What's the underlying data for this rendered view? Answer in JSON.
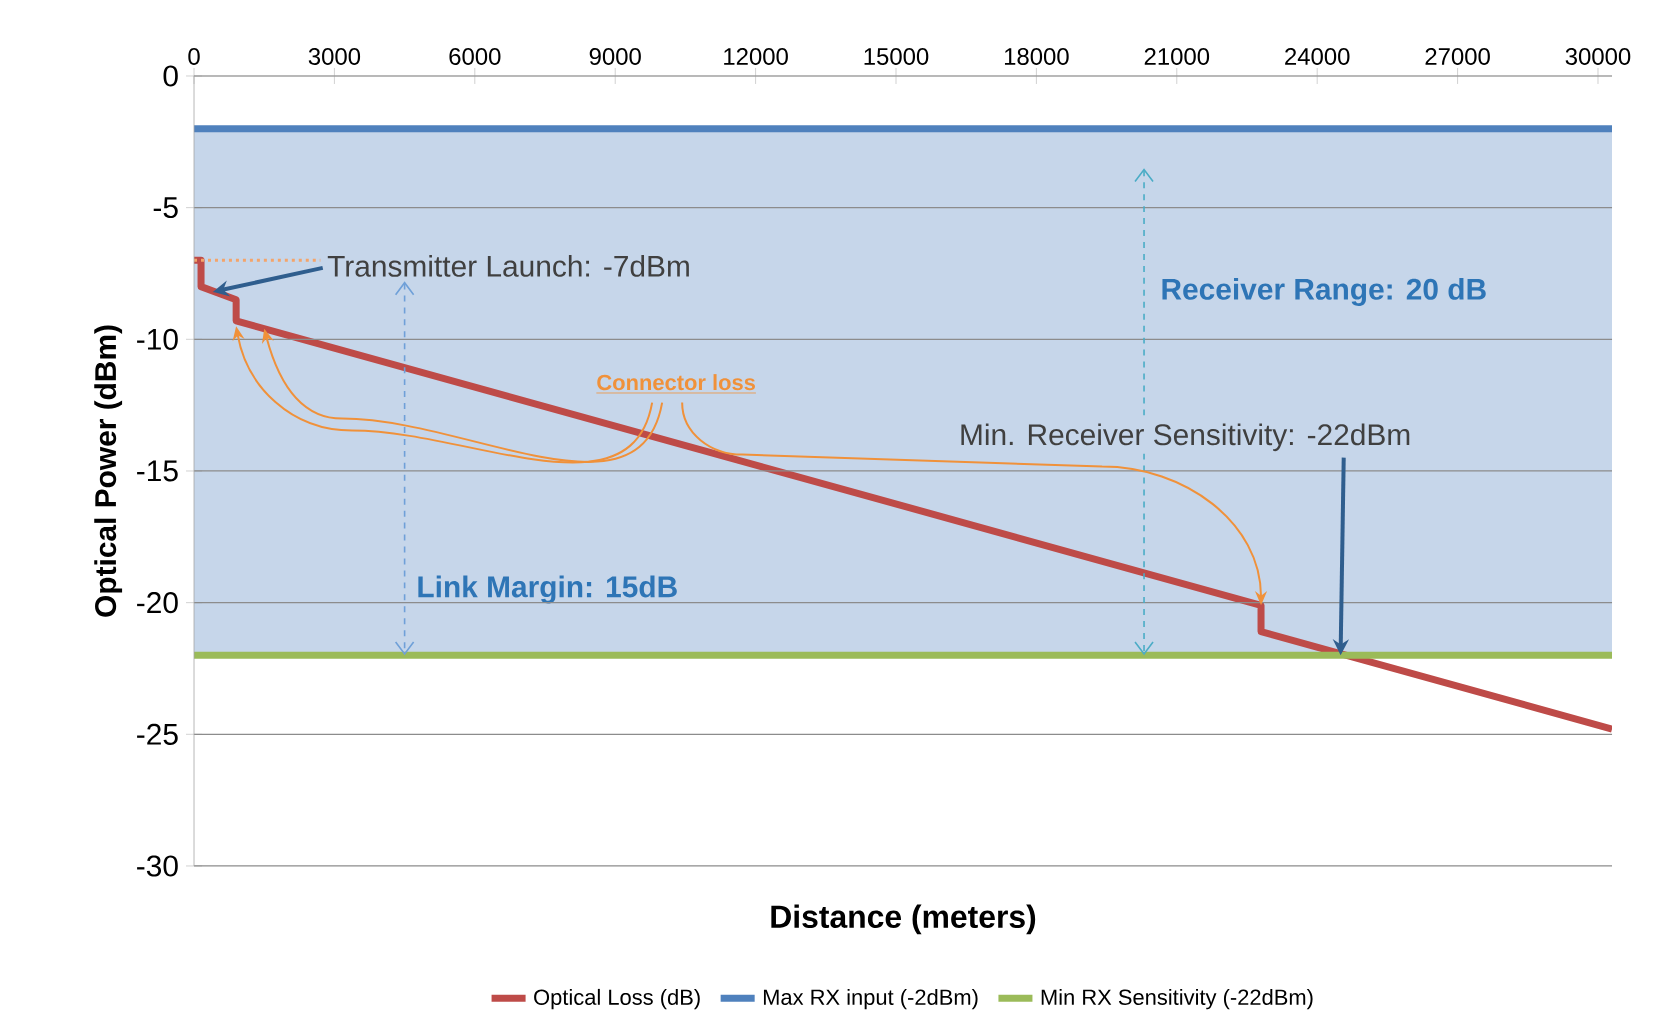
{
  "chart_data": {
    "type": "line",
    "xlabel": "Distance (meters)",
    "ylabel": "Optical Power (dBm)",
    "xlim": [
      0,
      30300
    ],
    "ylim": [
      -30,
      0
    ],
    "xticks": [
      0,
      3000,
      6000,
      9000,
      12000,
      15000,
      18000,
      21000,
      24000,
      27000,
      30000
    ],
    "yticks": [
      0,
      -5,
      -10,
      -15,
      -20,
      -25,
      -30
    ],
    "grid": "y",
    "legend": "bottom",
    "marker": "none",
    "line_style": "solid",
    "series": [
      {
        "name": "Optical Loss (dB)",
        "color": "#be4b48",
        "x": [
          0,
          150,
          150,
          900,
          900,
          22800,
          22800,
          30300
        ],
        "values": [
          -7,
          -7,
          -8,
          -8.5,
          -9.3,
          -20.1,
          -21.1,
          -24.8
        ]
      },
      {
        "name": "Max RX input  (-2dBm)",
        "color": "#4f81bd",
        "x": [
          0,
          30300
        ],
        "values": [
          -2,
          -2
        ]
      },
      {
        "name": "Min RX Sensitivity (-22dBm)",
        "color": "#9bbb59",
        "x": [
          0,
          30300
        ],
        "values": [
          -22,
          -22
        ]
      },
      {
        "color": "#f4a46a",
        "x": [
          0,
          2700
        ],
        "values": [
          -7,
          -7
        ],
        "line_style": "dotted"
      }
    ],
    "bands": [
      {
        "axis": "y",
        "from": -22,
        "to": -2,
        "color": "#c6d6ea"
      }
    ],
    "annotations": [
      {
        "text": "Transmitter  Launch: -7dBm",
        "x": 400,
        "y": -8.2
      },
      {
        "text": "Connector loss",
        "x": 900,
        "y": -9.5
      },
      {
        "text": "Min. Receiver Sensitivity: -22dBm",
        "x": 24500,
        "y": -22
      },
      "Link Margin: 15dB",
      "Receiver Range: 20 dB"
    ]
  }
}
